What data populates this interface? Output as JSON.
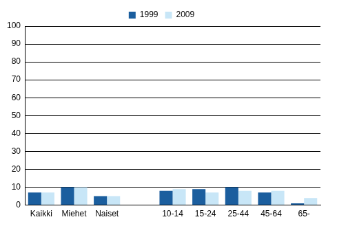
{
  "chart_data": {
    "type": "bar",
    "categories": [
      "Kaikki",
      "Miehet",
      "Naiset",
      null,
      "10-14",
      "15-24",
      "25-44",
      "45-64",
      "65-"
    ],
    "series": [
      {
        "name": "1999",
        "color": "#1b5e9e",
        "values": [
          7,
          10,
          5,
          null,
          8,
          9,
          10,
          7,
          1
        ]
      },
      {
        "name": "2009",
        "color": "#c8e6f7",
        "values": [
          7,
          10,
          5,
          null,
          9,
          7,
          8,
          8,
          4
        ]
      }
    ],
    "ylim": [
      0,
      100
    ],
    "yticks": [
      0,
      10,
      20,
      30,
      40,
      50,
      60,
      70,
      80,
      90,
      100
    ],
    "grid": true,
    "legend": "top"
  }
}
